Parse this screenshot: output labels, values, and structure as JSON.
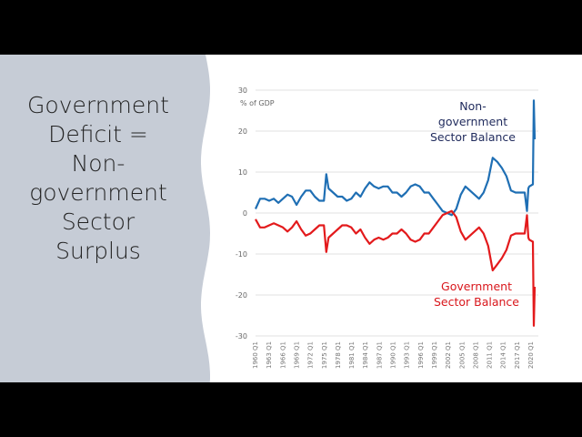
{
  "slide": {
    "title_lines": [
      "Government",
      "Deficit =",
      "Non-",
      "government",
      "Sector",
      "Surplus"
    ],
    "panel_color": "#c6ccd6"
  },
  "chart_data": {
    "type": "line",
    "title": "",
    "ylabel": "% of GDP",
    "xlabel": "",
    "ylim": [
      -30,
      30
    ],
    "yticks": [
      30,
      20,
      10,
      0,
      -10,
      -20,
      -30
    ],
    "xlim": [
      1960,
      2021.2
    ],
    "grid": true,
    "category_labels": [
      "1960 Q1",
      "1963 Q1",
      "1966 Q1",
      "1969 Q1",
      "1972 Q1",
      "1975 Q1",
      "1978 Q1",
      "1981 Q1",
      "1984 Q1",
      "1987 Q1",
      "1990 Q1",
      "1993 Q1",
      "1996 Q1",
      "1999 Q1",
      "2002 Q1",
      "2005 Q1",
      "2008 Q1",
      "2011 Q1",
      "2014 Q1",
      "2017 Q1",
      "2020 Q1"
    ],
    "annotations": [
      {
        "lines": [
          "Non-",
          "government",
          "Sector Balance"
        ],
        "color": "#1f2a5c",
        "series": "Non-government Sector Balance"
      },
      {
        "lines": [
          "Government",
          "Sector Balance"
        ],
        "color": "#d9171c",
        "series": "Government Sector Balance"
      }
    ],
    "series": [
      {
        "name": "Non-government Sector Balance",
        "color": "#1f6fb4",
        "x": [
          1960,
          1961,
          1962,
          1963,
          1964,
          1965,
          1966,
          1967,
          1968,
          1969,
          1970,
          1971,
          1972,
          1973,
          1974,
          1975,
          1975.5,
          1976,
          1977,
          1978,
          1979,
          1980,
          1981,
          1982,
          1983,
          1984,
          1985,
          1986,
          1987,
          1988,
          1989,
          1990,
          1991,
          1992,
          1993,
          1994,
          1995,
          1996,
          1997,
          1998,
          1999,
          2000,
          2001,
          2002,
          2003,
          2004,
          2005,
          2006,
          2007,
          2008,
          2009,
          2010,
          2011,
          2012,
          2013,
          2014,
          2015,
          2016,
          2017,
          2018,
          2019,
          2019.5,
          2019.8,
          2020,
          2020.8,
          2021,
          2021.2
        ],
        "y": [
          1,
          3.5,
          3.5,
          3,
          3.5,
          2.5,
          3.5,
          4.5,
          4,
          2,
          4,
          5.5,
          5.5,
          4,
          3,
          3,
          9.5,
          6,
          5,
          4,
          4,
          3,
          3.5,
          5,
          4,
          6,
          7.5,
          6.5,
          6,
          6.5,
          6.5,
          5,
          5,
          4,
          5,
          6.5,
          7,
          6.5,
          5,
          5,
          3.5,
          2,
          0.5,
          0,
          -0.5,
          1,
          4.5,
          6.5,
          5.5,
          4.5,
          3.5,
          5,
          8,
          13.5,
          12.5,
          11,
          9,
          5.5,
          5,
          5,
          5,
          0.5,
          6,
          6.5,
          7,
          27.5,
          18
        ]
      },
      {
        "name": "Government Sector Balance",
        "color": "#e31a1c",
        "x": [
          1960,
          1961,
          1962,
          1963,
          1964,
          1965,
          1966,
          1967,
          1968,
          1969,
          1970,
          1971,
          1972,
          1973,
          1974,
          1975,
          1975.5,
          1976,
          1977,
          1978,
          1979,
          1980,
          1981,
          1982,
          1983,
          1984,
          1985,
          1986,
          1987,
          1988,
          1989,
          1990,
          1991,
          1992,
          1993,
          1994,
          1995,
          1996,
          1997,
          1998,
          1999,
          2000,
          2001,
          2002,
          2003,
          2004,
          2005,
          2006,
          2007,
          2008,
          2009,
          2010,
          2011,
          2012,
          2013,
          2014,
          2015,
          2016,
          2017,
          2018,
          2019,
          2019.5,
          2019.8,
          2020,
          2020.8,
          2021,
          2021.2
        ],
        "y": [
          -1.5,
          -3.5,
          -3.5,
          -3,
          -2.5,
          -3,
          -3.5,
          -4.5,
          -3.5,
          -2,
          -4,
          -5.5,
          -5,
          -4,
          -3,
          -3,
          -9.5,
          -6,
          -5,
          -4,
          -3,
          -3,
          -3.5,
          -5,
          -4,
          -6,
          -7.5,
          -6.5,
          -6,
          -6.5,
          -6,
          -5,
          -5,
          -4,
          -5,
          -6.5,
          -7,
          -6.5,
          -5,
          -5,
          -3.5,
          -2,
          -0.5,
          0,
          0.5,
          -1,
          -4.5,
          -6.5,
          -5.5,
          -4.5,
          -3.5,
          -5,
          -8,
          -14,
          -12.5,
          -11,
          -9,
          -5.5,
          -5,
          -5,
          -5,
          -0.5,
          -6,
          -6.5,
          -7,
          -27.5,
          -18
        ]
      }
    ]
  }
}
